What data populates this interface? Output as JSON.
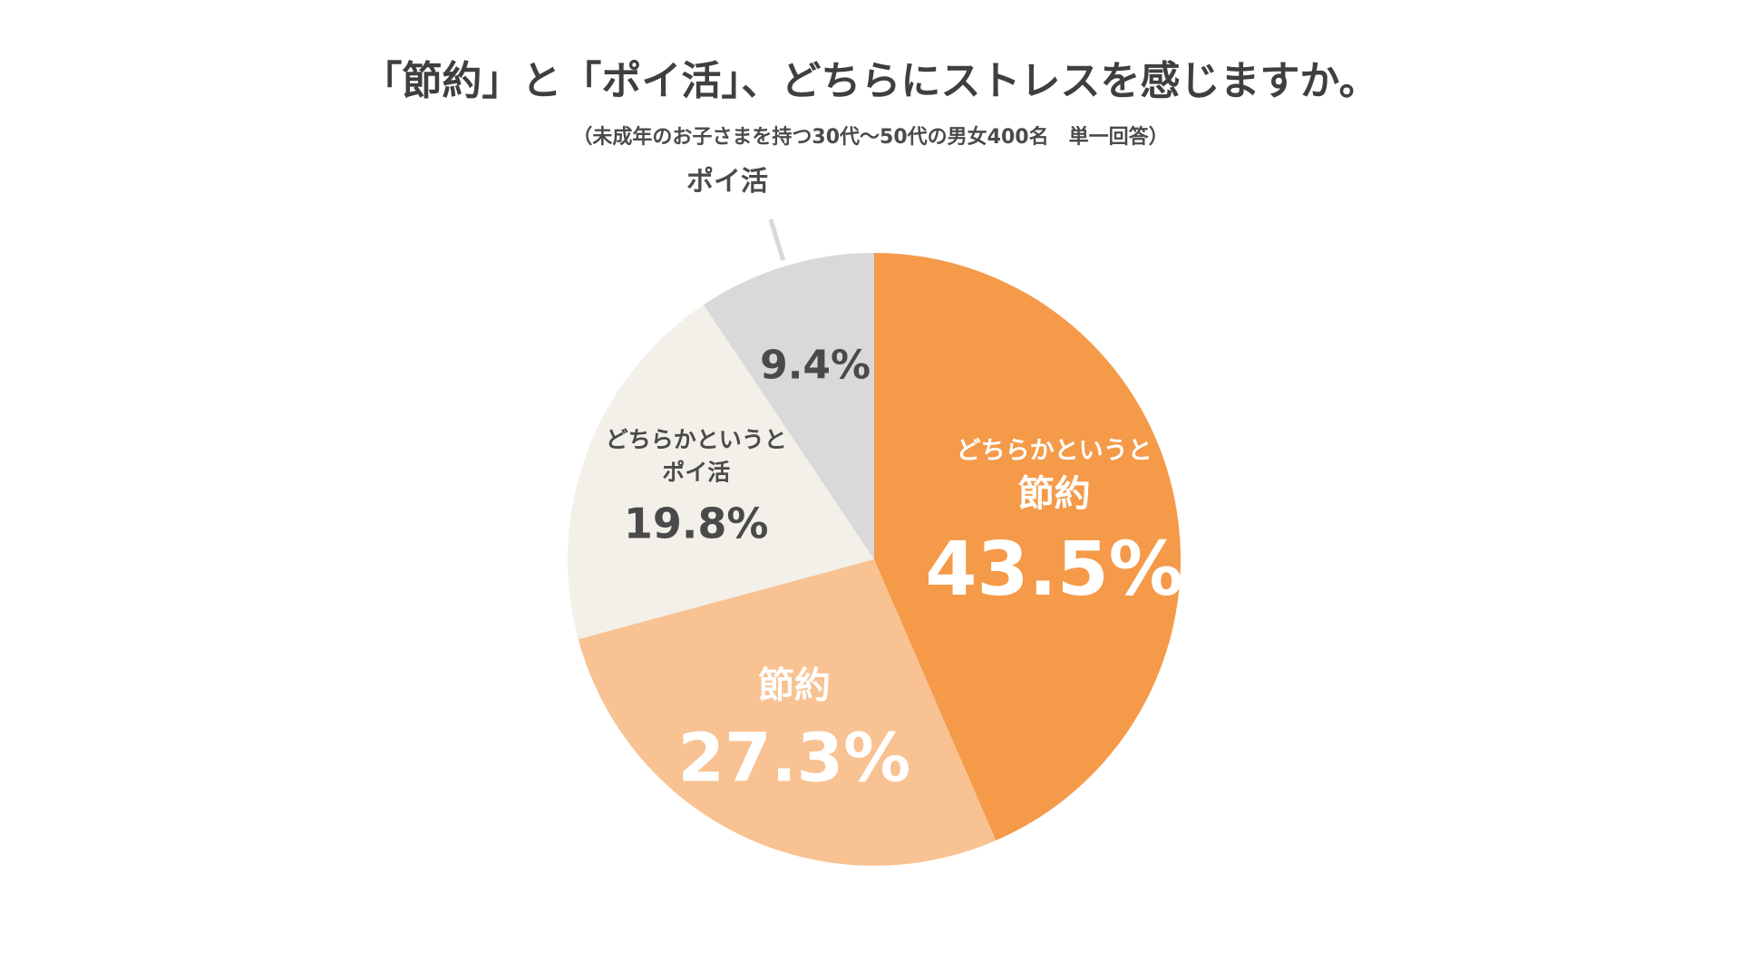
{
  "chart_data": {
    "type": "pie",
    "title": "「節約」と「ポイ活」、どちらにストレスを感じますか。",
    "subtitle": "（未成年のお子さまを持つ30代〜50代の男女400名　単一回答）",
    "start_angle_deg": 0,
    "direction": "clockwise",
    "slices": [
      {
        "label_lines": [
          "どちらかというと",
          "節約"
        ],
        "value": 43.5,
        "value_text": "43.5%",
        "color": "#f59a49",
        "text_color": "#ffffff"
      },
      {
        "label_lines": [
          "節約"
        ],
        "value": 27.3,
        "value_text": "27.3%",
        "color": "#f8c292",
        "text_color": "#ffffff"
      },
      {
        "label_lines": [
          "どちらかというと",
          "ポイ活"
        ],
        "value": 19.8,
        "value_text": "19.8%",
        "color": "#f2f0e8",
        "text_color": "#4a4a4a"
      },
      {
        "label_lines": [
          "ポイ活"
        ],
        "value": 9.4,
        "value_text": "9.4%",
        "color": "#d9d9d9",
        "text_color": "#4a4a4a",
        "label_outside": true,
        "leader_color": "#d9d9d9"
      }
    ]
  }
}
